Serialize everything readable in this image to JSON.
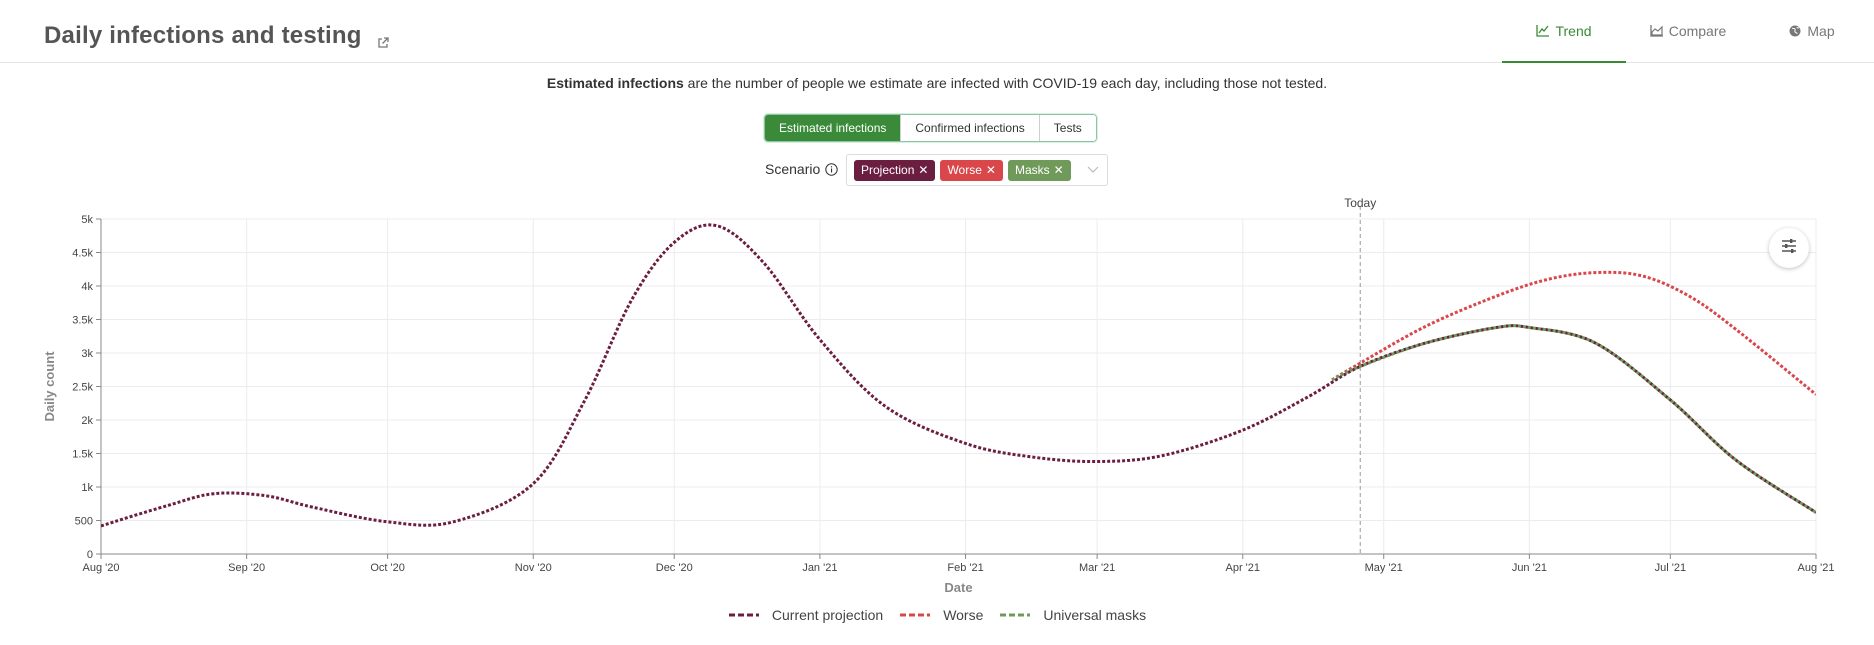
{
  "header": {
    "title": "Daily infections and testing",
    "tabs": [
      {
        "label": "Trend",
        "icon": "line-chart-icon",
        "active": true
      },
      {
        "label": "Compare",
        "icon": "area-chart-icon",
        "active": false
      },
      {
        "label": "Map",
        "icon": "globe-icon",
        "active": false
      }
    ]
  },
  "description": {
    "bold": "Estimated infections",
    "rest": " are the number of people we estimate are infected with COVID-19 each day, including those not tested."
  },
  "metric_toggle": {
    "options": [
      "Estimated infections",
      "Confirmed infections",
      "Tests"
    ],
    "selected": "Estimated infections"
  },
  "scenario": {
    "label": "Scenario",
    "tags": [
      {
        "label": "Projection",
        "color": "#6c1e41"
      },
      {
        "label": "Worse",
        "color": "#d9474a"
      },
      {
        "label": "Masks",
        "color": "#6f9a5a"
      }
    ]
  },
  "colors": {
    "accent": "#3a8a3a",
    "projection": "#6c1e41",
    "worse": "#d9474a",
    "masks": "#6f9a5a"
  },
  "chart_data": {
    "type": "line",
    "xlabel": "Date",
    "ylabel": "Daily count",
    "x_range": [
      "2020-08-01",
      "2021-08-01"
    ],
    "ylim": [
      0,
      5000
    ],
    "y_ticks": [
      {
        "value": 0,
        "label": "0"
      },
      {
        "value": 500,
        "label": "500"
      },
      {
        "value": 1000,
        "label": "1k"
      },
      {
        "value": 1500,
        "label": "1.5k"
      },
      {
        "value": 2000,
        "label": "2k"
      },
      {
        "value": 2500,
        "label": "2.5k"
      },
      {
        "value": 3000,
        "label": "3k"
      },
      {
        "value": 3500,
        "label": "3.5k"
      },
      {
        "value": 4000,
        "label": "4k"
      },
      {
        "value": 4500,
        "label": "4.5k"
      },
      {
        "value": 5000,
        "label": "5k"
      }
    ],
    "x_ticks": [
      {
        "date": "2020-08-01",
        "label": "Aug '20"
      },
      {
        "date": "2020-09-01",
        "label": "Sep '20"
      },
      {
        "date": "2020-10-01",
        "label": "Oct '20"
      },
      {
        "date": "2020-11-01",
        "label": "Nov '20"
      },
      {
        "date": "2020-12-01",
        "label": "Dec '20"
      },
      {
        "date": "2021-01-01",
        "label": "Jan '21"
      },
      {
        "date": "2021-02-01",
        "label": "Feb '21"
      },
      {
        "date": "2021-03-01",
        "label": "Mar '21"
      },
      {
        "date": "2021-04-01",
        "label": "Apr '21"
      },
      {
        "date": "2021-05-01",
        "label": "May '21"
      },
      {
        "date": "2021-06-01",
        "label": "Jun '21"
      },
      {
        "date": "2021-07-01",
        "label": "Jul '21"
      },
      {
        "date": "2021-08-01",
        "label": "Aug '21"
      }
    ],
    "today": {
      "date": "2021-04-26",
      "label": "Today"
    },
    "grid": true,
    "legend_position": "bottom",
    "series": [
      {
        "name": "Current projection",
        "color": "#6c1e41",
        "style": "dashed",
        "points": [
          [
            "2020-08-01",
            420
          ],
          [
            "2020-08-15",
            720
          ],
          [
            "2020-08-25",
            900
          ],
          [
            "2020-09-05",
            870
          ],
          [
            "2020-09-15",
            700
          ],
          [
            "2020-10-01",
            480
          ],
          [
            "2020-10-15",
            480
          ],
          [
            "2020-11-01",
            1050
          ],
          [
            "2020-11-12",
            2300
          ],
          [
            "2020-11-22",
            3800
          ],
          [
            "2020-12-01",
            4650
          ],
          [
            "2020-12-10",
            4900
          ],
          [
            "2020-12-20",
            4350
          ],
          [
            "2021-01-01",
            3200
          ],
          [
            "2021-01-15",
            2200
          ],
          [
            "2021-02-01",
            1650
          ],
          [
            "2021-02-15",
            1450
          ],
          [
            "2021-03-01",
            1380
          ],
          [
            "2021-03-15",
            1470
          ],
          [
            "2021-04-01",
            1850
          ],
          [
            "2021-04-15",
            2350
          ],
          [
            "2021-04-26",
            2800
          ],
          [
            "2021-05-10",
            3150
          ],
          [
            "2021-05-25",
            3380
          ],
          [
            "2021-06-01",
            3380
          ],
          [
            "2021-06-15",
            3150
          ],
          [
            "2021-07-01",
            2300
          ],
          [
            "2021-07-15",
            1400
          ],
          [
            "2021-08-01",
            620
          ]
        ]
      },
      {
        "name": "Worse",
        "color": "#d9474a",
        "style": "dashed",
        "points": [
          [
            "2021-04-20",
            2600
          ],
          [
            "2021-04-26",
            2850
          ],
          [
            "2021-05-10",
            3400
          ],
          [
            "2021-05-25",
            3850
          ],
          [
            "2021-06-05",
            4100
          ],
          [
            "2021-06-15",
            4200
          ],
          [
            "2021-06-25",
            4150
          ],
          [
            "2021-07-05",
            3850
          ],
          [
            "2021-07-15",
            3350
          ],
          [
            "2021-08-01",
            2380
          ]
        ]
      },
      {
        "name": "Universal masks",
        "color": "#6f9a5a",
        "style": "dashed",
        "points": [
          [
            "2021-04-20",
            2600
          ],
          [
            "2021-04-26",
            2800
          ],
          [
            "2021-05-10",
            3150
          ],
          [
            "2021-05-25",
            3380
          ],
          [
            "2021-06-01",
            3380
          ],
          [
            "2021-06-15",
            3150
          ],
          [
            "2021-07-01",
            2300
          ],
          [
            "2021-07-15",
            1400
          ],
          [
            "2021-08-01",
            620
          ]
        ]
      }
    ]
  }
}
